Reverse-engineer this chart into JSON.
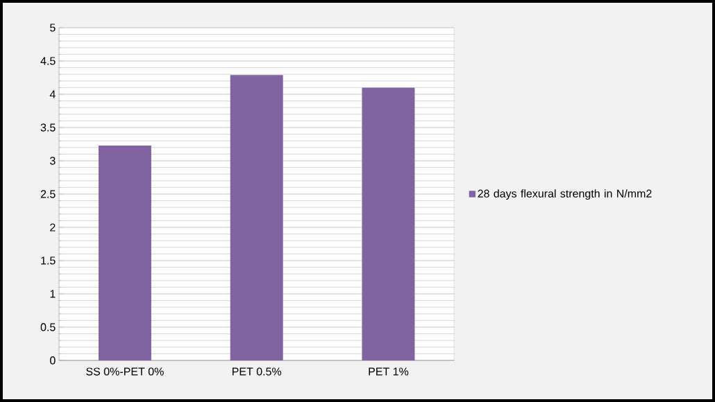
{
  "chart_data": {
    "type": "bar",
    "categories": [
      "SS 0%-PET 0%",
      "PET 0.5%",
      "PET 1%"
    ],
    "series": [
      {
        "name": "28 days flexural strength in N/mm2",
        "color": "#8064a2",
        "values": [
          3.23,
          4.29,
          4.1
        ]
      }
    ],
    "ylim": [
      0,
      5
    ],
    "yticks": [
      0,
      0.5,
      1,
      1.5,
      2,
      2.5,
      3,
      3.5,
      4,
      4.5,
      5
    ],
    "grid": "y",
    "legend": "right"
  }
}
